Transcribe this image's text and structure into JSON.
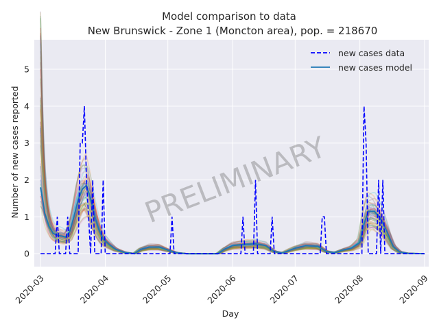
{
  "chart_data": {
    "type": "line",
    "title": "Model comparison to data",
    "subtitle": "New Brunswick - Zone 1 (Moncton area), pop. = 218670",
    "xlabel": "Day",
    "ylabel": "Number of new cases reported",
    "x_start_date": "2020-03-01",
    "xlim": [
      "2020-02-27",
      "2020-09-03"
    ],
    "ylim": [
      -0.35,
      5.8
    ],
    "x_ticks": [
      "2020-03-01",
      "2020-04-01",
      "2020-05-01",
      "2020-06-01",
      "2020-07-01",
      "2020-08-01",
      "2020-09-01"
    ],
    "x_tick_labels": [
      "2020-03",
      "2020-04",
      "2020-05",
      "2020-06",
      "2020-07",
      "2020-08",
      "2020-09"
    ],
    "y_ticks": [
      0,
      1,
      2,
      3,
      4,
      5
    ],
    "y_tick_labels": [
      "0",
      "1",
      "2",
      "3",
      "4",
      "5"
    ],
    "grid": true,
    "legend_position": "top-right",
    "watermark": "PRELIMINARY",
    "colors": {
      "background": "#eaeaf2",
      "grid": "#ffffff",
      "data": "#0000ff",
      "model": "#1f77b4",
      "ensemble": [
        "#1f77b4",
        "#ff7f0e",
        "#2ca02c",
        "#d62728",
        "#9467bd",
        "#8c564b",
        "#e377c2",
        "#7f7f7f",
        "#bcbd22",
        "#17becf"
      ]
    },
    "series": [
      {
        "name": "new cases data",
        "style": "dashed",
        "points": [
          [
            "2020-03-01",
            0
          ],
          [
            "2020-03-08",
            0
          ],
          [
            "2020-03-09",
            1
          ],
          [
            "2020-03-10",
            0
          ],
          [
            "2020-03-13",
            0
          ],
          [
            "2020-03-14",
            1
          ],
          [
            "2020-03-15",
            0
          ],
          [
            "2020-03-19",
            0
          ],
          [
            "2020-03-20",
            3
          ],
          [
            "2020-03-21",
            3
          ],
          [
            "2020-03-22",
            4
          ],
          [
            "2020-03-23",
            2
          ],
          [
            "2020-03-24",
            1
          ],
          [
            "2020-03-25",
            0
          ],
          [
            "2020-03-26",
            2
          ],
          [
            "2020-03-27",
            0
          ],
          [
            "2020-03-30",
            0
          ],
          [
            "2020-03-31",
            2
          ],
          [
            "2020-04-01",
            0
          ],
          [
            "2020-05-02",
            0
          ],
          [
            "2020-05-03",
            1
          ],
          [
            "2020-05-04",
            0
          ],
          [
            "2020-06-05",
            0
          ],
          [
            "2020-06-06",
            1
          ],
          [
            "2020-06-07",
            0
          ],
          [
            "2020-06-11",
            0
          ],
          [
            "2020-06-12",
            2
          ],
          [
            "2020-06-13",
            0
          ],
          [
            "2020-06-19",
            0
          ],
          [
            "2020-06-20",
            1
          ],
          [
            "2020-06-21",
            0
          ],
          [
            "2020-07-13",
            0
          ],
          [
            "2020-07-14",
            1
          ],
          [
            "2020-07-15",
            1
          ],
          [
            "2020-07-16",
            0
          ],
          [
            "2020-08-02",
            0
          ],
          [
            "2020-08-03",
            4
          ],
          [
            "2020-08-04",
            3
          ],
          [
            "2020-08-05",
            0
          ],
          [
            "2020-08-09",
            0
          ],
          [
            "2020-08-10",
            2
          ],
          [
            "2020-08-11",
            0
          ],
          [
            "2020-08-12",
            2
          ],
          [
            "2020-08-13",
            0
          ],
          [
            "2020-09-01",
            0
          ]
        ]
      },
      {
        "name": "new cases model",
        "style": "solid",
        "points": [
          [
            "2020-03-01",
            1.8
          ],
          [
            "2020-03-03",
            1.1
          ],
          [
            "2020-03-05",
            0.75
          ],
          [
            "2020-03-07",
            0.55
          ],
          [
            "2020-03-09",
            0.5
          ],
          [
            "2020-03-11",
            0.48
          ],
          [
            "2020-03-13",
            0.45
          ],
          [
            "2020-03-15",
            0.6
          ],
          [
            "2020-03-17",
            1.0
          ],
          [
            "2020-03-19",
            1.45
          ],
          [
            "2020-03-21",
            1.75
          ],
          [
            "2020-03-23",
            1.85
          ],
          [
            "2020-03-25",
            1.5
          ],
          [
            "2020-03-27",
            1.0
          ],
          [
            "2020-03-29",
            0.65
          ],
          [
            "2020-03-31",
            0.4
          ],
          [
            "2020-04-03",
            0.25
          ],
          [
            "2020-04-06",
            0.12
          ],
          [
            "2020-04-10",
            0.04
          ],
          [
            "2020-04-15",
            0.0
          ],
          [
            "2020-04-18",
            0.12
          ],
          [
            "2020-04-22",
            0.18
          ],
          [
            "2020-04-27",
            0.18
          ],
          [
            "2020-05-01",
            0.1
          ],
          [
            "2020-05-05",
            0.03
          ],
          [
            "2020-05-10",
            0.0
          ],
          [
            "2020-05-25",
            0.0
          ],
          [
            "2020-05-28",
            0.12
          ],
          [
            "2020-06-01",
            0.22
          ],
          [
            "2020-06-06",
            0.25
          ],
          [
            "2020-06-12",
            0.27
          ],
          [
            "2020-06-17",
            0.22
          ],
          [
            "2020-06-21",
            0.06
          ],
          [
            "2020-06-25",
            0.02
          ],
          [
            "2020-07-01",
            0.15
          ],
          [
            "2020-07-06",
            0.22
          ],
          [
            "2020-07-12",
            0.2
          ],
          [
            "2020-07-16",
            0.06
          ],
          [
            "2020-07-20",
            0.03
          ],
          [
            "2020-07-24",
            0.1
          ],
          [
            "2020-07-28",
            0.15
          ],
          [
            "2020-08-01",
            0.3
          ],
          [
            "2020-08-03",
            0.8
          ],
          [
            "2020-08-05",
            1.15
          ],
          [
            "2020-08-08",
            1.15
          ],
          [
            "2020-08-11",
            0.95
          ],
          [
            "2020-08-14",
            0.6
          ],
          [
            "2020-08-17",
            0.2
          ],
          [
            "2020-08-20",
            0.05
          ],
          [
            "2020-08-24",
            0.01
          ],
          [
            "2020-09-01",
            0.0
          ]
        ]
      }
    ]
  }
}
